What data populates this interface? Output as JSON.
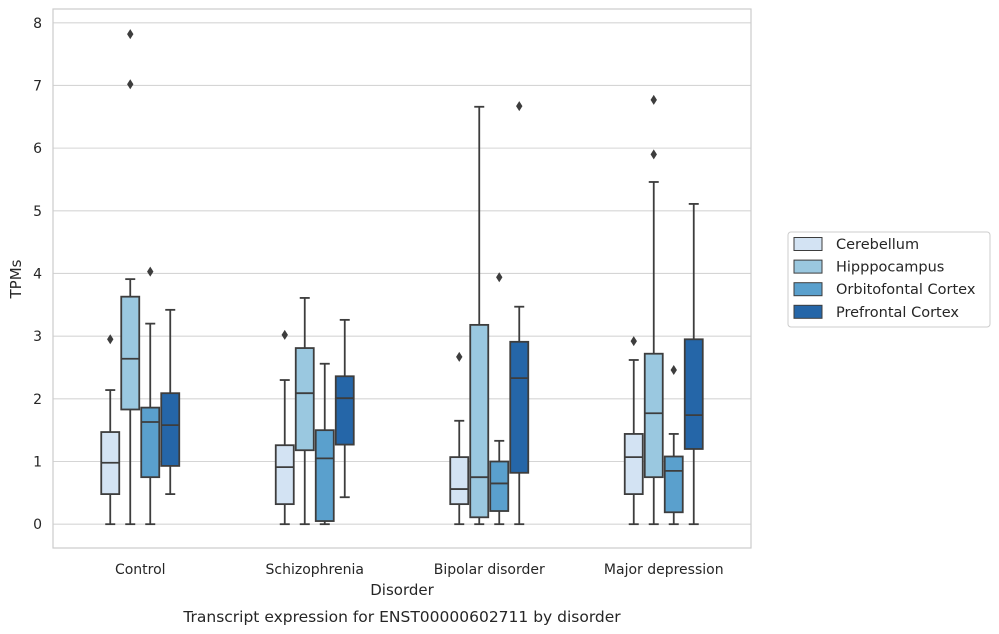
{
  "chart_data": {
    "type": "boxplot",
    "caption": "Transcript expression for ENST00000602711 by disorder",
    "xlabel": "Disorder",
    "ylabel": "TPMs",
    "ylim": [
      -0.38,
      8.22
    ],
    "yticks": [
      0,
      1,
      2,
      3,
      4,
      5,
      6,
      7,
      8
    ],
    "grid": true,
    "legend_position": "right",
    "categories": [
      "Control",
      "Schizophrenia",
      "Bipolar disorder",
      "Major depression"
    ],
    "series": [
      {
        "name": "Cerebellum",
        "color": "#d3e3f3",
        "boxes": [
          {
            "whislo": 0,
            "q1": 0.48,
            "med": 0.98,
            "q3": 1.47,
            "whishi": 2.14,
            "fliers": [
              2.95
            ]
          },
          {
            "whislo": 0,
            "q1": 0.32,
            "med": 0.91,
            "q3": 1.26,
            "whishi": 2.3,
            "fliers": [
              3.02
            ]
          },
          {
            "whislo": 0,
            "q1": 0.32,
            "med": 0.56,
            "q3": 1.07,
            "whishi": 1.65,
            "fliers": [
              2.67
            ]
          },
          {
            "whislo": 0,
            "q1": 0.48,
            "med": 1.07,
            "q3": 1.44,
            "whishi": 2.62,
            "fliers": [
              2.92
            ]
          }
        ]
      },
      {
        "name": "Hipppocampus",
        "color": "#9ac8e0",
        "boxes": [
          {
            "whislo": 0,
            "q1": 1.83,
            "med": 2.64,
            "q3": 3.63,
            "whishi": 3.91,
            "fliers": [
              7.02,
              7.82
            ]
          },
          {
            "whislo": 0,
            "q1": 1.18,
            "med": 2.09,
            "q3": 2.81,
            "whishi": 3.61,
            "fliers": []
          },
          {
            "whislo": 0,
            "q1": 0.11,
            "med": 0.75,
            "q3": 3.18,
            "whishi": 6.66,
            "fliers": []
          },
          {
            "whislo": 0,
            "q1": 0.75,
            "med": 1.77,
            "q3": 2.72,
            "whishi": 5.46,
            "fliers": [
              5.9,
              6.77
            ]
          }
        ]
      },
      {
        "name": "Orbitofontal Cortex",
        "color": "#5aa0cd",
        "boxes": [
          {
            "whislo": 0,
            "q1": 0.75,
            "med": 1.63,
            "q3": 1.86,
            "whishi": 3.2,
            "fliers": [
              4.03
            ]
          },
          {
            "whislo": 0,
            "q1": 0.05,
            "med": 1.05,
            "q3": 1.5,
            "whishi": 2.56,
            "fliers": []
          },
          {
            "whislo": 0,
            "q1": 0.21,
            "med": 0.65,
            "q3": 1.0,
            "whishi": 1.33,
            "fliers": [
              3.94
            ]
          },
          {
            "whislo": 0,
            "q1": 0.19,
            "med": 0.85,
            "q3": 1.08,
            "whishi": 1.44,
            "fliers": [
              2.46
            ]
          }
        ]
      },
      {
        "name": "Prefrontal Cortex",
        "color": "#2566a8",
        "boxes": [
          {
            "whislo": 0.48,
            "q1": 0.93,
            "med": 1.58,
            "q3": 2.09,
            "whishi": 3.42,
            "fliers": []
          },
          {
            "whislo": 0.43,
            "q1": 1.27,
            "med": 2.01,
            "q3": 2.36,
            "whishi": 3.26,
            "fliers": []
          },
          {
            "whislo": 0,
            "q1": 0.82,
            "med": 2.33,
            "q3": 2.91,
            "whishi": 3.47,
            "fliers": [
              6.67
            ]
          },
          {
            "whislo": 0,
            "q1": 1.2,
            "med": 1.74,
            "q3": 2.95,
            "whishi": 5.11,
            "fliers": []
          }
        ]
      }
    ]
  }
}
